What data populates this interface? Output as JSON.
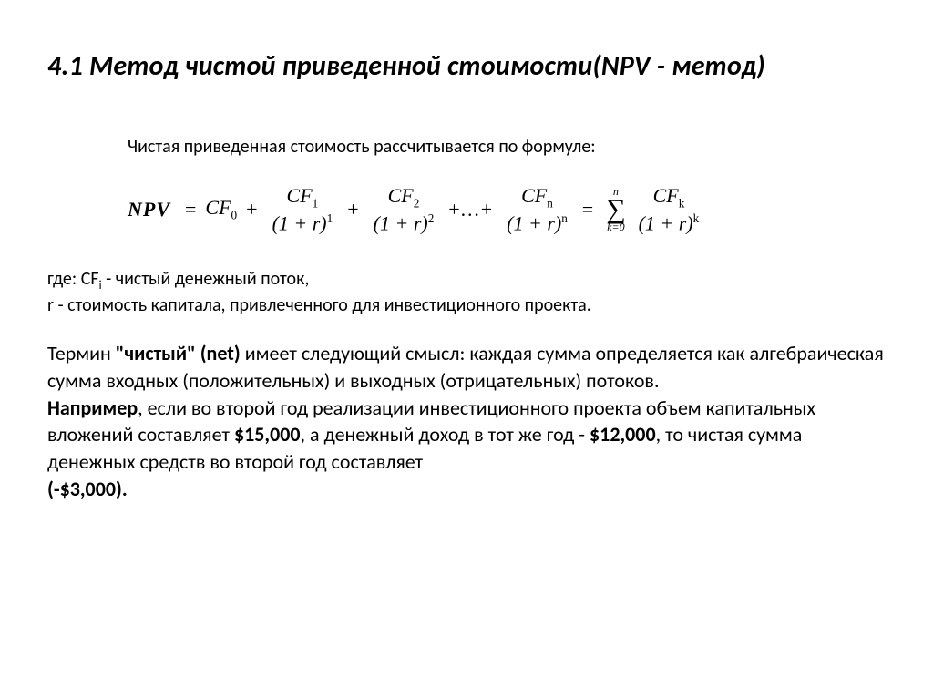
{
  "title": "4.1  Метод чистой приведенной стоимости(NPV - метод)",
  "intro": "Чистая приведенная стоимость рассчитывается по формуле:",
  "formula": {
    "lhs": "NPV",
    "cf0": "CF",
    "cf0_sub": "0",
    "terms": [
      {
        "num": "CF",
        "num_sub": "1",
        "den_exp": "1"
      },
      {
        "num": "CF",
        "num_sub": "2",
        "den_exp": "2"
      },
      {
        "num": "CF",
        "num_sub": "n",
        "den_exp": "n"
      }
    ],
    "sum_top": "n",
    "sum_bot": "k=0",
    "sum_num": "CF",
    "sum_num_sub": "k",
    "sum_den_exp": "k",
    "rate_var": "r"
  },
  "defs": {
    "where": "где: CF",
    "where_sub": "i",
    "where_tail": " - чистый денежный поток,",
    "r_line": "r - стоимость капитала, привлеченного для инвестиционного проекта."
  },
  "para": {
    "p1a": "Термин ",
    "p1b": "\"чистый\"  (net)",
    "p1c": " имеет следующий смысл: каждая сумма определяется как алгебраическая сумма входных (положительных) и выходных (отрицательных) потоков.",
    "p2a": " Например",
    "p2b": ", если во второй год реализации инвестиционного проекта объем капитальных вложений составляет ",
    "p2c": "$15,000",
    "p2d": ", а денежный доход в тот же год - ",
    "p2e": "$12,000",
    "p2f": ", то чистая сумма денежных средств во второй год составляет",
    "p3": " (-$3,000)."
  },
  "style": {
    "title_fontsize": 30,
    "body_fontsize": 22,
    "intro_fontsize": 20,
    "text_color": "#000000",
    "background_color": "#ffffff",
    "formula_font": "Times New Roman"
  }
}
